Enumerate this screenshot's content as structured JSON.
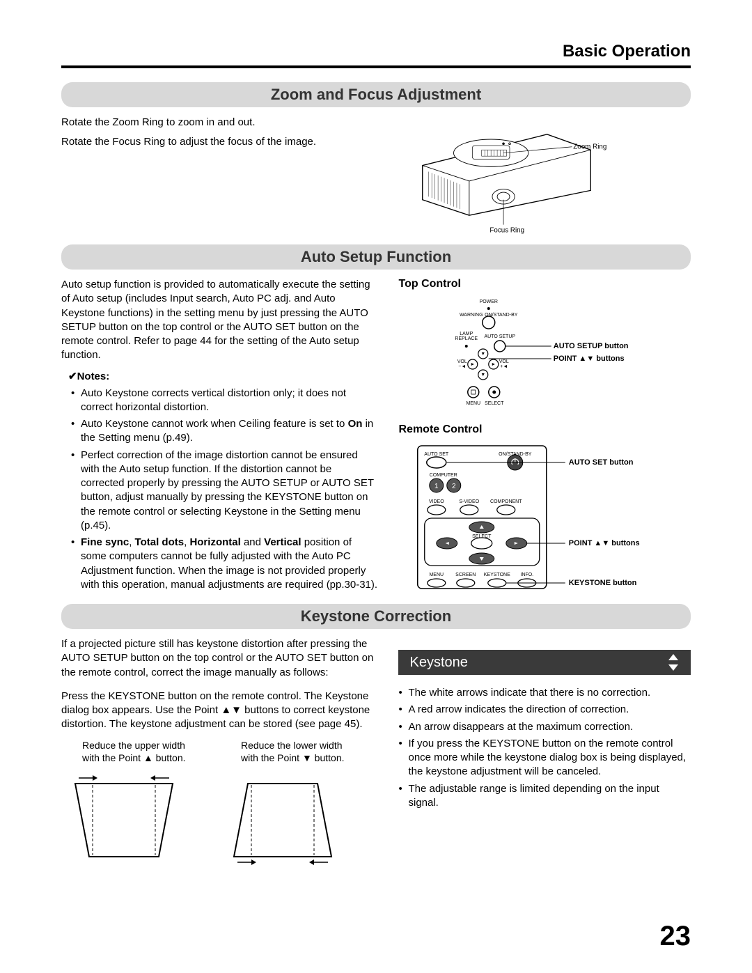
{
  "page": {
    "header": "Basic Operation",
    "number": "23"
  },
  "section1": {
    "heading": "Zoom and Focus Adjustment",
    "p1": "Rotate the Zoom Ring to zoom in and out.",
    "p2": "Rotate the Focus Ring to adjust the focus of the image.",
    "labels": {
      "zoom": "Zoom Ring",
      "focus": "Focus Ring"
    }
  },
  "section2": {
    "heading": "Auto Setup Function",
    "intro": "Auto setup function is provided to automatically execute the setting of Auto setup (includes Input search, Auto PC adj. and Auto Keystone functions) in the setting menu by just pressing the AUTO SETUP button on the top control or the AUTO SET button on the remote control. Refer to page 44 for the setting of the Auto setup function.",
    "notes_label": "✔Notes:",
    "notes": [
      "Auto Keystone corrects vertical distortion only; it does not correct horizontal distortion.",
      "Auto Keystone cannot work when Ceiling feature is set to <b>On</b> in the Setting menu (p.49).",
      "Perfect correction of the image distortion cannot be ensured with the Auto setup function. If the distortion cannot be corrected properly by pressing the AUTO SETUP or AUTO SET button, adjust manually by pressing the KEYSTONE button on the remote control or selecting Keystone in the Setting menu (p.45).",
      "<b>Fine sync</b>, <b>Total dots</b>, <b>Horizontal</b> and <b>Vertical</b> position of some computers cannot be fully adjusted with the Auto PC Adjustment function. When the image is not provided properly with this operation, manual adjustments are required (pp.30-31)."
    ],
    "top_control_title": "Top Control",
    "remote_title": "Remote Control",
    "top_labels": {
      "auto_setup": "AUTO SETUP button",
      "point": "POINT ▲▼ buttons"
    },
    "remote_labels": {
      "auto_set": "AUTO SET button",
      "point": "POINT ▲▼ buttons",
      "keystone": "KEYSTONE button"
    },
    "top_tiny": {
      "power": "POWER",
      "warning": "WARNING",
      "standby": "ON/STAND-BY",
      "lamp": "LAMP\nREPLACE",
      "auto": "AUTO SETUP",
      "volm": "VOL\n−",
      "volp": "VOL\n+",
      "menu": "MENU",
      "select": "SELECT"
    },
    "remote_tiny": {
      "autoset": "AUTO SET",
      "standby": "ON/STAND-BY",
      "computer": "COMPUTER",
      "video": "VIDEO",
      "svideo": "S-VIDEO",
      "component": "COMPONENT",
      "select": "SELECT",
      "menu": "MENU",
      "screen": "SCREEN",
      "keystone": "KEYSTONE",
      "info": "INFO.",
      "n1": "1",
      "n2": "2"
    }
  },
  "section3": {
    "heading": "Keystone Correction",
    "p1": "If a projected picture still has keystone distortion after pressing the AUTO SETUP button on the top control or the AUTO SET button on the remote control, correct the image manually as follows:",
    "p2": "Press the KEYSTONE button on the remote control. The Keystone dialog box appears. Use the Point ▲▼ buttons to correct keystone distortion. The keystone adjustment can be stored (see page 45).",
    "cap_upper": "Reduce the upper width with the Point ▲ button.",
    "cap_lower": "Reduce the lower width with the Point ▼ button.",
    "bar_label": "Keystone",
    "bullets": [
      "The white arrows indicate that there is no correction.",
      "A red arrow indicates the direction of correction.",
      "An arrow disappears at the maximum correction.",
      "If you press the KEYSTONE button on the remote control once more while the keystone dialog box is being displayed, the keystone adjustment will be canceled.",
      "The adjustable range is limited depending on the input signal."
    ]
  },
  "colors": {
    "heading_bg": "#d8d8d8",
    "bar_bg": "#3a3a3a",
    "bar_text": "#ffffff",
    "text": "#000000"
  }
}
